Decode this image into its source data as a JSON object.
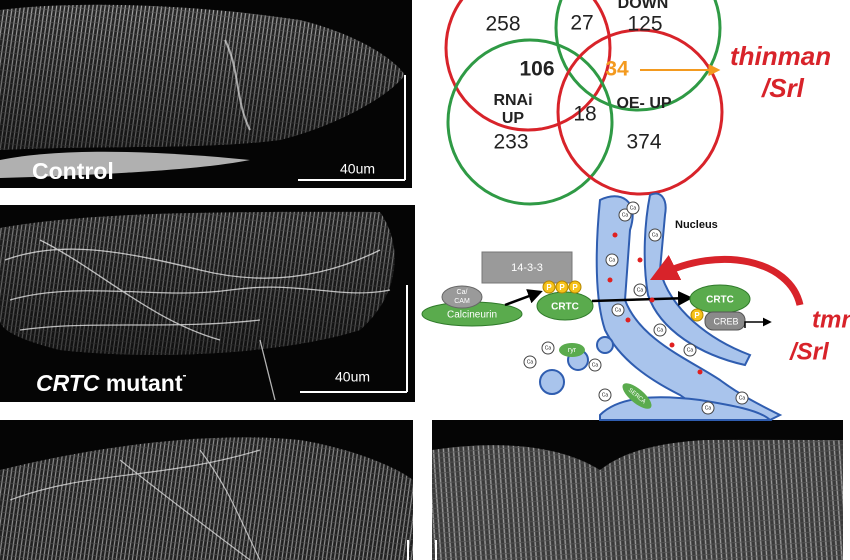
{
  "panels": {
    "control": {
      "label": "Control",
      "scale_bar": "40um"
    },
    "mutant": {
      "gene": "CRTC",
      "label": " mutant",
      "superscript": "-",
      "scale_bar": "40um"
    }
  },
  "venn": {
    "down_label": "DOWN",
    "rnai_label": "RNAi",
    "up_label": "UP",
    "oe_up_label": "OE- UP",
    "counts": {
      "rnai_down_only": 258,
      "down_overlap": 27,
      "oe_down_only": 125,
      "rnai_overlap": 106,
      "thinman_overlap": 34,
      "up_overlap": 18,
      "rnai_up_only": 233,
      "oe_up_only": 374
    },
    "gene_name": "thinman",
    "gene_alias": "/Srl"
  },
  "schematic": {
    "nucleus": "Nucleus",
    "adaptor": "14-3-3",
    "cam": [
      "Ca/",
      "CAM"
    ],
    "calcineurin": "Calcineurin",
    "phospho": "P",
    "crtc": "CRTC",
    "creb": "CREB",
    "calcium": "Ca",
    "ryr": "ryr",
    "serca": "SERCA",
    "target": "tmn",
    "target_alias": "/Srl"
  }
}
